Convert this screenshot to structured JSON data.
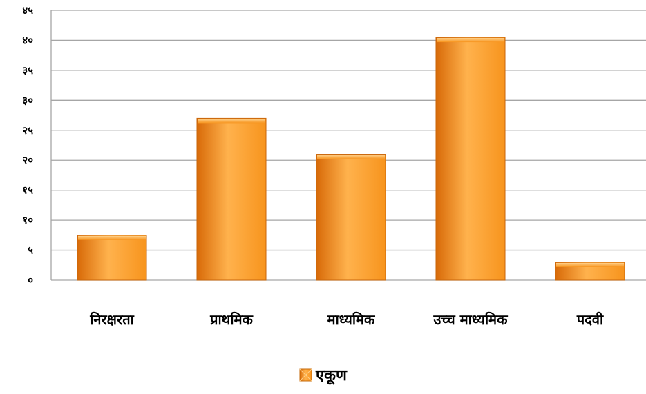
{
  "chart_data": {
    "type": "bar",
    "categories": [
      "निरक्षरता",
      "प्राथमिक",
      "माध्यमिक",
      "उच्च माध्यमिक",
      "पदवी"
    ],
    "series": [
      {
        "name": "एकूण",
        "values": [
          7.5,
          27,
          21,
          40.5,
          3
        ]
      }
    ],
    "ylim": [
      0,
      45
    ],
    "yticks": [
      0,
      5,
      10,
      15,
      20,
      25,
      30,
      35,
      40,
      45
    ],
    "ytick_labels": [
      "०",
      "५",
      "१०",
      "१५",
      "२०",
      "२५",
      "३०",
      "३५",
      "४०",
      "४५"
    ],
    "grid": true,
    "legend_position": "bottom",
    "colors": {
      "bar_light": "#ffb24d",
      "bar_main": "#f7941d",
      "bar_dark": "#d86a08",
      "gridline": "#a6a6a6"
    }
  }
}
